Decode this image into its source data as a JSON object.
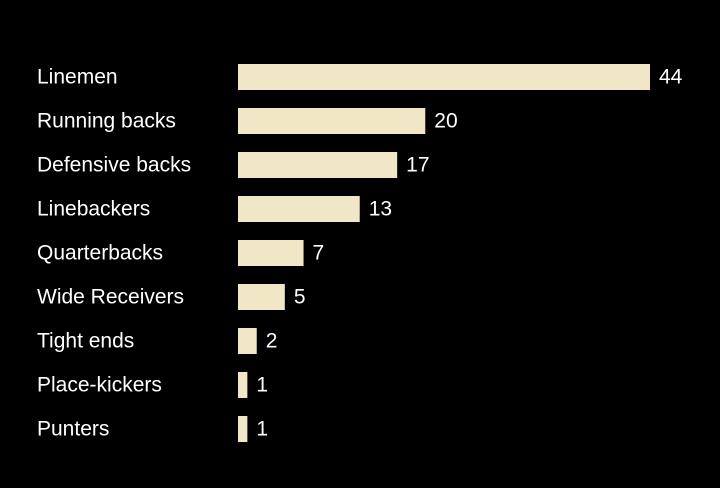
{
  "chart_data": {
    "type": "bar",
    "orientation": "horizontal",
    "categories": [
      "Linemen",
      "Running backs",
      "Defensive backs",
      "Linebackers",
      "Quarterbacks",
      "Wide Receivers",
      "Tight ends",
      "Place-kickers",
      "Punters"
    ],
    "values": [
      44,
      20,
      17,
      13,
      7,
      5,
      2,
      1,
      1
    ],
    "title": "",
    "xlabel": "",
    "ylabel": "",
    "xlim": [
      0,
      44
    ],
    "grid": false,
    "legend": "none",
    "colors": {
      "background": "#000000",
      "bar": "#f1e6c6",
      "text": "#ffffff"
    }
  }
}
